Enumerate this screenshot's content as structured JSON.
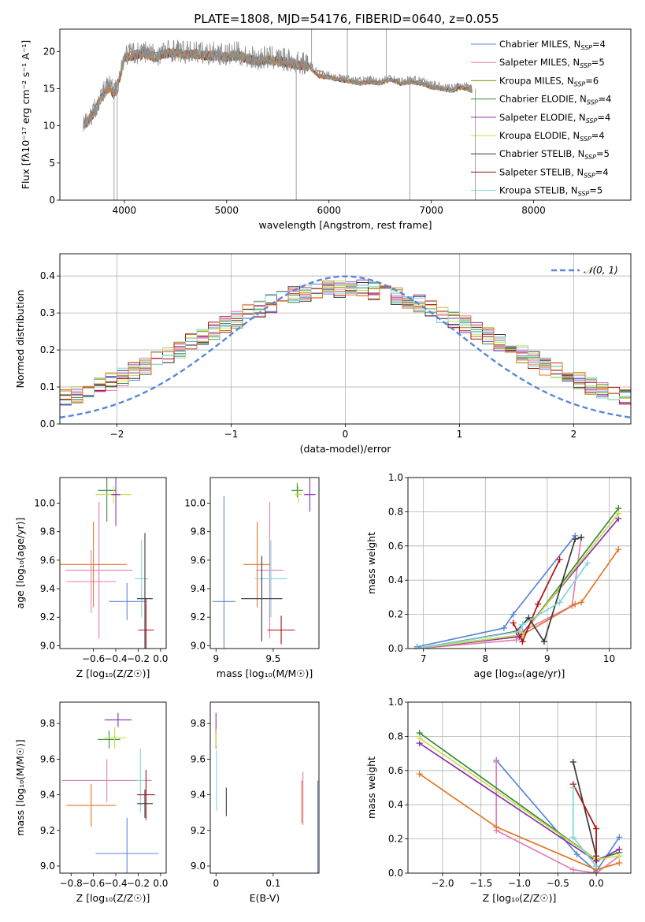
{
  "figure": {
    "title": "PLATE=1808, MJD=54176, FIBERID=0640, z=0.055"
  },
  "colors": {
    "Chabrier MILES": "#5b86d8",
    "Salpeter MILES": "#e27fb7",
    "Kroupa MILES": "#8a8a16",
    "Chabrier ELODIE": "#3a8a3a",
    "Salpeter ELODIE": "#8b2fb0",
    "Kroupa ELODIE": "#c8de4a",
    "Chabrier STELIB": "#3a3a3a",
    "Salpeter STELIB": "#b01010",
    "Kroupa STELIB": "#7fd6d6",
    "orange": "#e0782a",
    "grid": "#b0b0b0",
    "spectrum_gray": "#8c8c8c"
  },
  "chart_data": [
    {
      "id": "spectrum",
      "type": "line",
      "xlabel": "wavelength [Angstrom, rest frame]",
      "ylabel": "Flux [fλ10⁻¹⁷ erg cm⁻² s⁻¹ A⁻¹]",
      "xlim": [
        3370,
        8950
      ],
      "ylim": [
        0,
        23
      ],
      "xticks": [
        4000,
        5000,
        6000,
        7000,
        8000
      ],
      "yticks": [
        0,
        5,
        10,
        15,
        20
      ],
      "grid": false,
      "legend_position": "top-right",
      "legend": [
        {
          "label": "Chabrier MILES, N",
          "sub": "SSP",
          "suffix": "=4",
          "color": "#5b86d8"
        },
        {
          "label": "Salpeter MILES, N",
          "sub": "SSP",
          "suffix": "=5",
          "color": "#e27fb7"
        },
        {
          "label": "Kroupa MILES, N",
          "sub": "SSP",
          "suffix": "=6",
          "color": "#8a8a16"
        },
        {
          "label": "Chabrier ELODIE, N",
          "sub": "SSP",
          "suffix": "=4",
          "color": "#3a8a3a"
        },
        {
          "label": "Salpeter ELODIE, N",
          "sub": "SSP",
          "suffix": "=4",
          "color": "#8b2fb0"
        },
        {
          "label": "Kroupa ELODIE, N",
          "sub": "SSP",
          "suffix": "=4",
          "color": "#c8de4a"
        },
        {
          "label": "Chabrier STELIB, N",
          "sub": "SSP",
          "suffix": "=5",
          "color": "#3a3a3a"
        },
        {
          "label": "Salpeter STELIB, N",
          "sub": "SSP",
          "suffix": "=4",
          "color": "#b01010"
        },
        {
          "label": "Kroupa STELIB, N",
          "sub": "SSP",
          "suffix": "=5",
          "color": "#7fd6d6"
        }
      ],
      "data_curve": {
        "x": [
          3600,
          3650,
          3700,
          3750,
          3800,
          3850,
          3900,
          3950,
          4000,
          4100,
          4200,
          4300,
          4400,
          4500,
          4600,
          4700,
          4800,
          4900,
          5000,
          5100,
          5200,
          5300,
          5400,
          5500,
          5600,
          5700,
          5800,
          5900,
          6000,
          6100,
          6200,
          6300,
          6400,
          6500,
          6600,
          6700,
          6800,
          6900,
          7000,
          7100,
          7200,
          7300,
          7400
        ],
        "y": [
          10.5,
          11.0,
          12.0,
          13.5,
          14.5,
          15.5,
          14.5,
          16.5,
          19.5,
          19.8,
          20.0,
          19.5,
          20.0,
          20.2,
          19.8,
          20.0,
          19.7,
          19.8,
          19.5,
          19.8,
          19.3,
          19.0,
          19.2,
          19.0,
          18.8,
          18.5,
          18.3,
          17.0,
          16.8,
          16.5,
          16.3,
          16.0,
          16.2,
          16.0,
          16.5,
          16.0,
          16.2,
          16.0,
          15.5,
          15.3,
          15.0,
          15.5,
          15.0
        ],
        "dips": [
          {
            "x": 3900,
            "y": 0.0
          },
          {
            "x": 3930,
            "y": 0.0
          },
          {
            "x": 5680,
            "y": 0.0
          },
          {
            "x": 6790,
            "y": 0.0
          },
          {
            "x": 7430,
            "y": 0.0
          }
        ],
        "spikes": [
          {
            "x": 5830,
            "y": 23.0
          },
          {
            "x": 6180,
            "y": 23.0
          },
          {
            "x": 6560,
            "y": 23.0
          }
        ]
      }
    },
    {
      "id": "residuals",
      "type": "bar",
      "xlabel": "(data-model)/error",
      "ylabel": "Normed distribution",
      "xlim": [
        -2.5,
        2.5
      ],
      "ylim": [
        0,
        0.46
      ],
      "xticks": [
        -2,
        -1,
        0,
        1,
        2
      ],
      "xtick_labels": [
        "−2",
        "−1",
        "0",
        "1",
        "2"
      ],
      "yticks": [
        0.0,
        0.1,
        0.2,
        0.3,
        0.4
      ],
      "grid": true,
      "legend_position": "top-right",
      "legend": [
        {
          "label": "𝒩(0, 1)",
          "style": "dashed",
          "color": "#5b86d8"
        }
      ],
      "gaussian": {
        "mean": 0,
        "sigma": 1
      },
      "bin_range": [
        -2.6,
        2.6
      ],
      "bin_count": 52,
      "series_colors": [
        "#5b86d8",
        "#e27fb7",
        "#8a8a16",
        "#3a8a3a",
        "#8b2fb0",
        "#c8de4a",
        "#3a3a3a",
        "#b01010",
        "#7fd6d6",
        "#e0782a"
      ]
    },
    {
      "id": "age-vs-Z",
      "type": "scatter",
      "xlabel": "Z [log₁₀(Z/Z☉)]",
      "ylabel": "age  [log₁₀(age/yr)]",
      "xlim": [
        -0.9,
        0.05
      ],
      "ylim": [
        8.98,
        10.18
      ],
      "xticks": [
        -0.6,
        -0.4,
        -0.2,
        0.0
      ],
      "xtick_labels": [
        "−0.6",
        "−0.4",
        "−0.2",
        "0.0"
      ],
      "yticks": [
        9.0,
        9.2,
        9.4,
        9.6,
        9.8,
        10.0
      ],
      "grid": false,
      "points": [
        {
          "x": -0.62,
          "xerr": 0.22,
          "y": 9.45,
          "yerr": 0.22,
          "color": "#e27fb7",
          "name": "Salpeter MILES"
        },
        {
          "x": -0.55,
          "xerr": 0.3,
          "y": 9.53,
          "yerr": 0.48,
          "color": "#e27fb7",
          "name": "Salpeter MILES"
        },
        {
          "x": -0.6,
          "xerr": 0.3,
          "y": 9.57,
          "yerr": 0.3,
          "color": "#e0782a",
          "name": "orange"
        },
        {
          "x": -0.48,
          "xerr": 0.08,
          "y": 10.09,
          "yerr": 0.22,
          "color": "#3a8a3a",
          "name": "Chabrier ELODIE"
        },
        {
          "x": -0.42,
          "xerr": 0.16,
          "y": 10.06,
          "yerr": 0.06,
          "color": "#c8de4a",
          "name": "Kroupa ELODIE"
        },
        {
          "x": -0.4,
          "xerr": 0.04,
          "y": 10.06,
          "yerr": 0.22,
          "color": "#8b2fb0",
          "name": "Salpeter ELODIE"
        },
        {
          "x": -0.3,
          "xerr": 0.16,
          "y": 9.31,
          "yerr": 0.13,
          "color": "#5b86d8",
          "name": "Chabrier MILES"
        },
        {
          "x": -0.17,
          "xerr": 0.06,
          "y": 9.47,
          "yerr": 0.27,
          "color": "#7fd6d6",
          "name": "Kroupa STELIB"
        },
        {
          "x": -0.14,
          "xerr": 0.07,
          "y": 9.33,
          "yerr": 0.46,
          "color": "#3a3a3a",
          "name": "Chabrier STELIB"
        },
        {
          "x": -0.13,
          "xerr": 0.07,
          "y": 9.11,
          "yerr": 0.22,
          "color": "#b01010",
          "name": "Salpeter STELIB"
        }
      ]
    },
    {
      "id": "age-vs-mass",
      "type": "scatter",
      "xlabel": "mass [log₁₀(M/M☉)]",
      "ylabel": "",
      "xlim": [
        8.95,
        9.9
      ],
      "ylim": [
        8.98,
        10.18
      ],
      "xticks": [
        9.0,
        9.5
      ],
      "yticks": [
        9.0,
        9.2,
        9.4,
        9.6,
        9.8,
        10.0
      ],
      "grid": false,
      "points": [
        {
          "x": 9.07,
          "xerr": 0.1,
          "y": 9.31,
          "yerr": 0.74,
          "color": "#5b86d8",
          "name": "Chabrier MILES"
        },
        {
          "x": 9.36,
          "xerr": 0.12,
          "y": 9.57,
          "yerr": 0.3,
          "color": "#e0782a",
          "name": "orange"
        },
        {
          "x": 9.47,
          "xerr": 0.12,
          "y": 9.53,
          "yerr": 0.48,
          "color": "#e27fb7",
          "name": "Salpeter MILES"
        },
        {
          "x": 9.48,
          "xerr": 0.14,
          "y": 9.47,
          "yerr": 0.27,
          "color": "#7fd6d6",
          "name": "Kroupa STELIB"
        },
        {
          "x": 9.4,
          "xerr": 0.18,
          "y": 9.33,
          "yerr": 0.3,
          "color": "#3a3a3a",
          "name": "Chabrier STELIB"
        },
        {
          "x": 9.57,
          "xerr": 0.12,
          "y": 9.11,
          "yerr": 0.1,
          "color": "#b01010",
          "name": "Salpeter STELIB"
        },
        {
          "x": 9.71,
          "xerr": 0.05,
          "y": 10.09,
          "yerr": 0.05,
          "color": "#3a8a3a",
          "name": "Chabrier ELODIE"
        },
        {
          "x": 9.72,
          "xerr": 0.03,
          "y": 10.06,
          "yerr": 0.06,
          "color": "#c8de4a",
          "name": "Kroupa ELODIE"
        },
        {
          "x": 9.82,
          "xerr": 0.05,
          "y": 10.06,
          "yerr": 0.12,
          "color": "#8b2fb0",
          "name": "Salpeter ELODIE"
        }
      ]
    },
    {
      "id": "mass-weight-vs-age",
      "type": "line",
      "xlabel": "age  [log₁₀(age/yr)]",
      "ylabel": "mass weight",
      "xlim": [
        6.75,
        10.35
      ],
      "ylim": [
        0,
        1.0
      ],
      "xticks": [
        7,
        8,
        9,
        10
      ],
      "yticks": [
        0.0,
        0.2,
        0.4,
        0.6,
        0.8,
        1.0
      ],
      "grid": true,
      "series": [
        {
          "name": "Chabrier MILES",
          "color": "#5b86d8",
          "x": [
            6.9,
            8.3,
            8.45,
            9.45
          ],
          "y": [
            0.01,
            0.12,
            0.2,
            0.66
          ]
        },
        {
          "name": "Salpeter MILES",
          "color": "#e27fb7",
          "x": [
            6.9,
            8.5,
            8.6,
            9.4,
            9.55
          ],
          "y": [
            0.0,
            0.05,
            0.1,
            0.25,
            0.65
          ]
        },
        {
          "name": "orange",
          "color": "#e0782a",
          "x": [
            6.9,
            8.55,
            9.45,
            9.55,
            10.15
          ],
          "y": [
            0.0,
            0.07,
            0.26,
            0.27,
            0.58
          ]
        },
        {
          "name": "Chabrier ELODIE",
          "color": "#3a8a3a",
          "x": [
            6.9,
            8.6,
            10.15
          ],
          "y": [
            0.0,
            0.08,
            0.82
          ]
        },
        {
          "name": "Salpeter ELODIE",
          "color": "#8b2fb0",
          "x": [
            6.9,
            8.55,
            10.15
          ],
          "y": [
            0.0,
            0.07,
            0.76
          ]
        },
        {
          "name": "Kroupa ELODIE",
          "color": "#c8de4a",
          "x": [
            6.9,
            8.6,
            10.15
          ],
          "y": [
            0.0,
            0.08,
            0.79
          ]
        },
        {
          "name": "Chabrier STELIB",
          "color": "#3a3a3a",
          "x": [
            6.9,
            8.5,
            8.7,
            8.95,
            9.45,
            9.55
          ],
          "y": [
            0.0,
            0.1,
            0.18,
            0.04,
            0.64,
            0.65
          ]
        },
        {
          "name": "Salpeter STELIB",
          "color": "#b01010",
          "x": [
            8.45,
            8.55,
            8.6,
            8.85,
            9.2
          ],
          "y": [
            0.15,
            0.08,
            0.04,
            0.26,
            0.52
          ]
        },
        {
          "name": "Kroupa STELIB",
          "color": "#7fd6d6",
          "x": [
            6.9,
            8.55,
            8.6,
            9.2,
            9.65
          ],
          "y": [
            0.0,
            0.1,
            0.14,
            0.27,
            0.5
          ]
        }
      ]
    },
    {
      "id": "mass-vs-Z",
      "type": "scatter",
      "xlabel": "Z [log₁₀(Z/Z☉)]",
      "ylabel": "mass [log₁₀(M/M☉)]",
      "xlim": [
        -0.9,
        0.05
      ],
      "ylim": [
        8.96,
        9.92
      ],
      "xticks": [
        -0.8,
        -0.6,
        -0.4,
        -0.2,
        0.0
      ],
      "xtick_labels": [
        "−0.8",
        "−0.6",
        "−0.4",
        "−0.2",
        "0.0"
      ],
      "yticks": [
        9.0,
        9.2,
        9.4,
        9.6,
        9.8
      ],
      "grid": false,
      "points": [
        {
          "x": -0.48,
          "xerr": 0.4,
          "y": 9.48,
          "yerr": 0.12,
          "color": "#e27fb7",
          "name": "Salpeter MILES"
        },
        {
          "x": -0.62,
          "xerr": 0.22,
          "y": 9.34,
          "yerr": 0.12,
          "color": "#e0782a",
          "name": "orange"
        },
        {
          "x": -0.3,
          "xerr": 0.28,
          "y": 9.07,
          "yerr": 0.2,
          "color": "#5b86d8",
          "name": "Chabrier MILES"
        },
        {
          "x": -0.46,
          "xerr": 0.1,
          "y": 9.71,
          "yerr": 0.05,
          "color": "#3a8a3a",
          "name": "Chabrier ELODIE"
        },
        {
          "x": -0.41,
          "xerr": 0.1,
          "y": 9.72,
          "yerr": 0.06,
          "color": "#c8de4a",
          "name": "Kroupa ELODIE"
        },
        {
          "x": -0.38,
          "xerr": 0.12,
          "y": 9.82,
          "yerr": 0.04,
          "color": "#8b2fb0",
          "name": "Salpeter ELODIE"
        },
        {
          "x": -0.18,
          "xerr": 0.04,
          "y": 9.48,
          "yerr": 0.18,
          "color": "#7fd6d6",
          "name": "Kroupa STELIB"
        },
        {
          "x": -0.14,
          "xerr": 0.07,
          "y": 9.35,
          "yerr": 0.08,
          "color": "#3a3a3a",
          "name": "Chabrier STELIB"
        },
        {
          "x": -0.13,
          "xerr": 0.08,
          "y": 9.4,
          "yerr": 0.14,
          "color": "#b01010",
          "name": "Salpeter STELIB"
        }
      ]
    },
    {
      "id": "mass-vs-ebv",
      "type": "scatter",
      "xlabel": "E(B-V)",
      "ylabel": "",
      "xlim": [
        -0.01,
        0.18
      ],
      "ylim": [
        8.96,
        9.92
      ],
      "xticks": [
        0.0,
        0.1
      ],
      "yticks": [
        9.0,
        9.2,
        9.4,
        9.6,
        9.8
      ],
      "grid": false,
      "points": [
        {
          "x": 0.0,
          "y": 9.72,
          "yerr": 0.06,
          "color": "#3a8a3a",
          "name": "Chabrier ELODIE"
        },
        {
          "x": 0.0,
          "y": 9.8,
          "yerr": 0.06,
          "color": "#8b2fb0",
          "name": "Salpeter ELODIE"
        },
        {
          "x": 0.0,
          "y": 9.72,
          "yerr": 0.05,
          "color": "#c8de4a",
          "name": "Kroupa ELODIE"
        },
        {
          "x": 0.001,
          "y": 9.48,
          "yerr": 0.17,
          "color": "#7fd6d6",
          "name": "Kroupa STELIB"
        },
        {
          "x": 0.018,
          "y": 9.36,
          "yerr": 0.08,
          "color": "#3a3a3a",
          "name": "Chabrier STELIB"
        },
        {
          "x": 0.15,
          "y": 9.36,
          "yerr": 0.12,
          "color": "#e0782a",
          "name": "orange"
        },
        {
          "x": 0.152,
          "y": 9.38,
          "yerr": 0.15,
          "color": "#e27fb7",
          "name": "Salpeter MILES"
        },
        {
          "x": 0.178,
          "y": 9.22,
          "yerr": 0.26,
          "color": "#5b86d8",
          "name": "Chabrier MILES"
        }
      ]
    },
    {
      "id": "mass-weight-vs-Z",
      "type": "line",
      "xlabel": "Z [log₁₀(Z/Z☉)]",
      "ylabel": "mass weight",
      "xlim": [
        -2.45,
        0.45
      ],
      "ylim": [
        0,
        1.0
      ],
      "xticks": [
        -2.0,
        -1.5,
        -1.0,
        -0.5,
        0.0
      ],
      "xtick_labels": [
        "−2.0",
        "−1.5",
        "−1.0",
        "−0.5",
        "0.0"
      ],
      "yticks": [
        0.0,
        0.2,
        0.4,
        0.6,
        0.8,
        1.0
      ],
      "grid": true,
      "series": [
        {
          "name": "Chabrier MILES",
          "color": "#5b86d8",
          "x": [
            -1.3,
            -0.25,
            0.0,
            0.3
          ],
          "y": [
            0.66,
            0.11,
            0.01,
            0.21
          ]
        },
        {
          "name": "Salpeter MILES",
          "color": "#e27fb7",
          "x": [
            -1.3,
            -1.3,
            -0.3,
            0.0,
            0.3
          ],
          "y": [
            0.65,
            0.25,
            0.02,
            0.0,
            0.1
          ]
        },
        {
          "name": "orange",
          "color": "#e0782a",
          "x": [
            -2.3,
            -1.3,
            0.0,
            0.3
          ],
          "y": [
            0.58,
            0.27,
            0.02,
            0.06
          ]
        },
        {
          "name": "Chabrier ELODIE",
          "color": "#3a8a3a",
          "x": [
            -2.3,
            0.0,
            0.3
          ],
          "y": [
            0.82,
            0.08,
            0.12
          ]
        },
        {
          "name": "Salpeter ELODIE",
          "color": "#8b2fb0",
          "x": [
            -2.3,
            0.0,
            0.3
          ],
          "y": [
            0.76,
            0.07,
            0.14
          ]
        },
        {
          "name": "Kroupa ELODIE",
          "color": "#c8de4a",
          "x": [
            -2.3,
            0.0,
            0.3
          ],
          "y": [
            0.79,
            0.08,
            0.1
          ]
        },
        {
          "name": "Chabrier STELIB",
          "color": "#3a3a3a",
          "x": [
            -0.3,
            0.0,
            0.0
          ],
          "y": [
            0.65,
            0.1,
            0.04
          ]
        },
        {
          "name": "Salpeter STELIB",
          "color": "#b01010",
          "x": [
            -0.3,
            0.0,
            0.0
          ],
          "y": [
            0.52,
            0.26,
            0.04
          ]
        },
        {
          "name": "Kroupa STELIB",
          "color": "#7fd6d6",
          "x": [
            -0.3,
            -0.3,
            0.0
          ],
          "y": [
            0.5,
            0.21,
            0.04
          ]
        }
      ]
    }
  ]
}
